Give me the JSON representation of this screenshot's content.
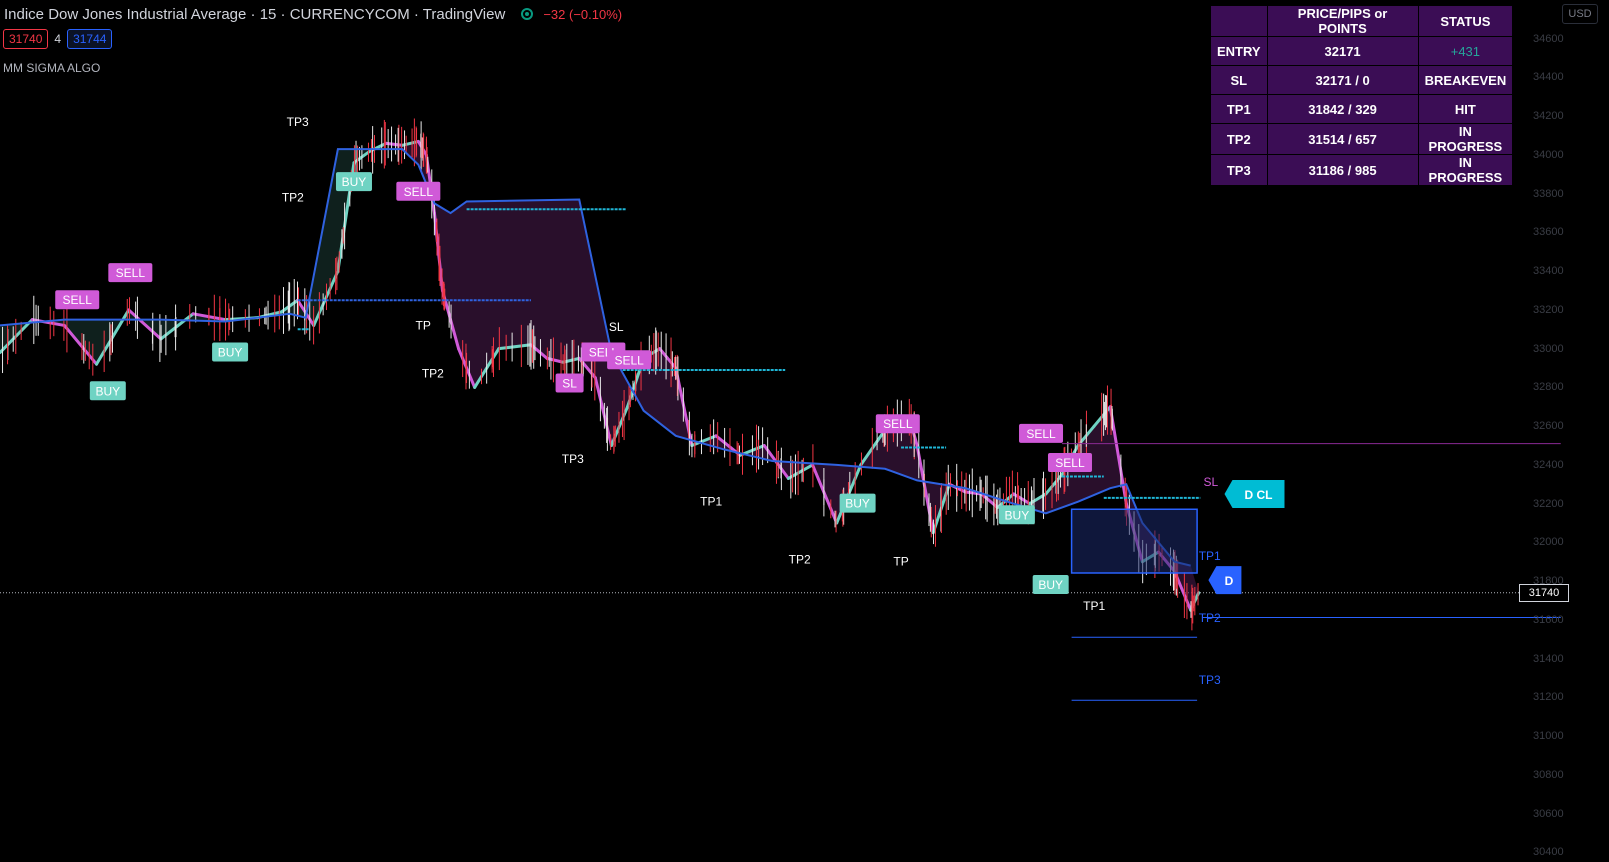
{
  "header": {
    "title": "Indice Dow Jones Industrial Average · 15 · CURRENCYCOM · TradingView",
    "change": "−32 (−0.10%)"
  },
  "quote": {
    "bid": "31740",
    "spread": "4",
    "ask": "31744"
  },
  "indicator_name": "MM SIGMA ALGO",
  "currency_button": "USD",
  "last_price_label": "31740",
  "status_table": {
    "headers": [
      "",
      "PRICE/PIPS or POINTS",
      "STATUS"
    ],
    "rows": [
      {
        "name": "ENTRY",
        "price": "32171",
        "status": "+431"
      },
      {
        "name": "SL",
        "price": "32171 / 0",
        "status": "BREAKEVEN"
      },
      {
        "name": "TP1",
        "price": "31842 / 329",
        "status": "HIT"
      },
      {
        "name": "TP2",
        "price": "31514 / 657",
        "status": "IN PROGRESS"
      },
      {
        "name": "TP3",
        "price": "31186 / 985",
        "status": "IN PROGRESS"
      }
    ]
  },
  "colors": {
    "buy": "#6fd3c3",
    "sell": "#d05ad8",
    "blue": "#2f62e0",
    "cyan": "#1fb6d6",
    "purple_fill": "#4a1b4f",
    "green_fill": "#1b3b34",
    "label_blue": "#2962ff",
    "label_cyan": "#00bcd4"
  },
  "chart_data": {
    "type": "line",
    "title": "Indice Dow Jones Industrial Average",
    "interval": "15",
    "source": "CURRENCYCOM",
    "ylim": [
      30350,
      34800
    ],
    "y_ticks": [
      34600,
      34400,
      34200,
      34000,
      33800,
      33600,
      33400,
      33200,
      33000,
      32800,
      32600,
      32400,
      32200,
      32000,
      31800,
      31600,
      31400,
      31200,
      31000,
      30800,
      30600,
      30400
    ],
    "xlim": [
      0,
      100
    ],
    "last_price": 31740,
    "series": [
      {
        "name": "Price",
        "x": [
          0,
          2,
          4,
          6,
          8,
          10,
          12,
          14,
          16,
          17.5,
          18.5,
          19.5,
          21,
          22,
          23,
          24,
          25,
          26,
          26.5,
          27,
          27.5,
          28.5,
          29.5,
          31,
          33,
          34,
          35,
          36,
          37,
          38,
          39,
          40,
          41,
          42,
          43,
          44.5,
          46,
          47.5,
          49,
          50.5,
          52,
          53.5,
          55,
          56.5,
          57,
          58,
          59,
          60,
          61,
          62,
          63,
          64,
          65,
          66,
          67,
          68,
          69,
          70,
          71,
          72,
          73,
          74,
          74.5
        ],
        "values": [
          32980,
          33150,
          33120,
          32920,
          33200,
          33050,
          33180,
          33150,
          33160,
          33190,
          33250,
          33120,
          33400,
          33960,
          34020,
          34060,
          34050,
          34070,
          34000,
          33700,
          33300,
          33000,
          32800,
          33000,
          33020,
          32950,
          32930,
          32950,
          32850,
          32500,
          32700,
          32950,
          33000,
          32900,
          32500,
          32550,
          32450,
          32500,
          32330,
          32400,
          32100,
          32400,
          32580,
          32650,
          32500,
          32050,
          32300,
          32260,
          32250,
          32180,
          32250,
          32200,
          32250,
          32350,
          32500,
          32600,
          32700,
          32200,
          31900,
          31950,
          31850,
          31650,
          31740
        ]
      },
      {
        "name": "Trail (blue)",
        "x": [
          0,
          4,
          10,
          14,
          16,
          18,
          19,
          21,
          23,
          25,
          26,
          27,
          28,
          29,
          36,
          38,
          40,
          42,
          45,
          48,
          52,
          55,
          57,
          60,
          63,
          65,
          67,
          69,
          70,
          71,
          72,
          73,
          74
        ],
        "values": [
          33120,
          33150,
          33150,
          33140,
          33160,
          33180,
          33160,
          34030,
          34030,
          34030,
          33950,
          33750,
          33700,
          33760,
          33770,
          32980,
          32680,
          32550,
          32480,
          32420,
          32400,
          32380,
          32320,
          32280,
          32200,
          32150,
          32210,
          32280,
          32300,
          32100,
          32000,
          31900,
          31880
        ]
      }
    ],
    "levels": [
      {
        "name": "blue level 1",
        "value": 33250,
        "x": [
          18.5,
          33
        ]
      },
      {
        "name": "cyan level 1",
        "value": 33100,
        "x": [
          18.5,
          19.2
        ]
      },
      {
        "name": "cyan level 2",
        "value": 33720,
        "x": [
          29,
          38.9
        ]
      },
      {
        "name": "cyan level 3",
        "value": 32890,
        "x": [
          38.7,
          48.8
        ]
      },
      {
        "name": "cyan level 4",
        "value": 32490,
        "x": [
          56,
          58.8
        ]
      },
      {
        "name": "cyan level 5",
        "value": 32340,
        "x": [
          66,
          68.6
        ]
      },
      {
        "name": "cyan level 6",
        "value": 32230,
        "x": [
          68.6,
          74.6
        ]
      },
      {
        "name": "purple SL line",
        "value": 32510,
        "x": [
          66,
          97
        ]
      },
      {
        "name": "TP2 line",
        "value": 31612,
        "x": [
          74.7,
          97
        ]
      },
      {
        "name": "TP2 box line",
        "value": 31510,
        "x": [
          66.6,
          74.4
        ]
      },
      {
        "name": "TP3 box line",
        "value": 31185,
        "x": [
          66.6,
          74.4
        ]
      }
    ],
    "annotations": [
      {
        "text": "SELL",
        "x": 4.8,
        "y": 33250,
        "type": "sell"
      },
      {
        "text": "SELL",
        "x": 8.1,
        "y": 33390,
        "type": "sell"
      },
      {
        "text": "BUY",
        "x": 6.7,
        "y": 32780,
        "type": "buy"
      },
      {
        "text": "BUY",
        "x": 14.3,
        "y": 32980,
        "type": "buy"
      },
      {
        "text": "TP3",
        "x": 18.5,
        "y": 34150,
        "type": "tp"
      },
      {
        "text": "TP2",
        "x": 18.2,
        "y": 33760,
        "type": "tp"
      },
      {
        "text": "BUY",
        "x": 22,
        "y": 33860,
        "type": "buy"
      },
      {
        "text": "SELL",
        "x": 26,
        "y": 33810,
        "type": "sell"
      },
      {
        "text": "TP",
        "x": 26.3,
        "y": 33100,
        "type": "tp"
      },
      {
        "text": "TP2",
        "x": 26.9,
        "y": 32850,
        "type": "tp"
      },
      {
        "text": "SL",
        "x": 38.3,
        "y": 33090,
        "type": "tp"
      },
      {
        "text": "SELL",
        "x": 37.5,
        "y": 32980,
        "type": "sell"
      },
      {
        "text": "SELL",
        "x": 39.1,
        "y": 32940,
        "type": "sell"
      },
      {
        "text": "SL",
        "x": 35.4,
        "y": 32820,
        "type": "sell"
      },
      {
        "text": "TP3",
        "x": 35.6,
        "y": 32410,
        "type": "tp"
      },
      {
        "text": "TP1",
        "x": 44.2,
        "y": 32190,
        "type": "tp"
      },
      {
        "text": "TP2",
        "x": 49.7,
        "y": 31890,
        "type": "tp"
      },
      {
        "text": "BUY",
        "x": 53.3,
        "y": 32200,
        "type": "buy"
      },
      {
        "text": "SELL",
        "x": 55.8,
        "y": 32610,
        "type": "sell"
      },
      {
        "text": "TP",
        "x": 56,
        "y": 31880,
        "type": "tp"
      },
      {
        "text": "SELL",
        "x": 64.7,
        "y": 32560,
        "type": "sell"
      },
      {
        "text": "SELL",
        "x": 66.5,
        "y": 32410,
        "type": "sell"
      },
      {
        "text": "BUY",
        "x": 63.2,
        "y": 32140,
        "type": "buy"
      },
      {
        "text": "BUY",
        "x": 65.3,
        "y": 31780,
        "type": "buy"
      },
      {
        "text": "TP1",
        "x": 68,
        "y": 31650,
        "type": "tp"
      }
    ],
    "axis_labels": [
      {
        "text": "SL",
        "x": 74.8,
        "y": 32290,
        "color": "#d05ad8"
      },
      {
        "text": "TP1",
        "x": 74.5,
        "y": 31910,
        "color": "#2962ff"
      },
      {
        "text": "TP2",
        "x": 74.5,
        "y": 31590,
        "color": "#2962ff"
      },
      {
        "text": "TP3",
        "x": 74.5,
        "y": 31270,
        "color": "#2962ff"
      }
    ],
    "flags": [
      {
        "text": "D CL",
        "x": 76.6,
        "y": 32250,
        "color": "#00bcd4"
      },
      {
        "text": "D",
        "x": 75.6,
        "y": 31805,
        "color": "#2962ff"
      }
    ],
    "position_box": {
      "x": [
        66.6,
        74.4
      ],
      "entry": 32171,
      "tp1": 31842
    }
  }
}
